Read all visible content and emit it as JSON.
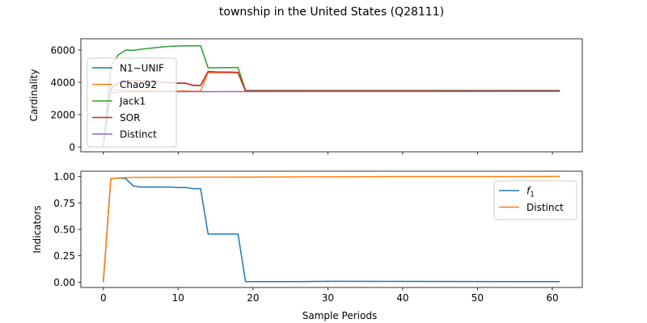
{
  "title": "township in the United States (Q28111)",
  "colors": {
    "blue": "#1f77b4",
    "orange": "#ff7f0e",
    "green": "#2ca02c",
    "red": "#d62728",
    "purple": "#9467bd"
  },
  "chart_data": [
    {
      "type": "line",
      "ylabel": "Cardinality",
      "xlabel": "",
      "xlim": [
        -3,
        64
      ],
      "ylim": [
        -300,
        6700
      ],
      "xticks": [
        0,
        10,
        20,
        30,
        40,
        50,
        60
      ],
      "xtick_labels": [
        "",
        "",
        "",
        "",
        "",
        "",
        ""
      ],
      "yticks": [
        0,
        2000,
        4000,
        6000
      ],
      "ytick_labels": [
        "0",
        "2000",
        "4000",
        "6000"
      ],
      "legend": {
        "placement": "upper-left"
      },
      "series": [
        {
          "name": "N1−UNIF",
          "color": "blue",
          "x": [
            0,
            1,
            2,
            3,
            4,
            5,
            6,
            7,
            8,
            9,
            10,
            11,
            12,
            13,
            14,
            15,
            16,
            17,
            18,
            19,
            61
          ],
          "y": [
            0,
            3600,
            3950,
            4050,
            4100,
            4100,
            4050,
            4050,
            4000,
            3980,
            3950,
            3950,
            3800,
            3800,
            4650,
            4620,
            4620,
            4620,
            4600,
            3450,
            3450
          ]
        },
        {
          "name": "Chao92",
          "color": "orange",
          "x": [
            0,
            1,
            2,
            3,
            4,
            5,
            6,
            7,
            8,
            9,
            10,
            11,
            12,
            13,
            14,
            15,
            16,
            17,
            18,
            19,
            61
          ],
          "y": [
            0,
            3550,
            3500,
            3500,
            3490,
            3490,
            3480,
            3480,
            3470,
            3470,
            3460,
            3460,
            3450,
            3450,
            4600,
            4600,
            4600,
            4600,
            4580,
            3450,
            3450
          ]
        },
        {
          "name": "Jack1",
          "color": "green",
          "x": [
            0,
            1,
            2,
            3,
            4,
            5,
            6,
            7,
            8,
            9,
            10,
            11,
            12,
            13,
            14,
            15,
            16,
            17,
            18,
            19,
            61
          ],
          "y": [
            0,
            5000,
            5700,
            6000,
            5980,
            6050,
            6100,
            6150,
            6200,
            6230,
            6250,
            6270,
            6260,
            6270,
            4900,
            4900,
            4910,
            4910,
            4920,
            3500,
            3500
          ]
        },
        {
          "name": "SOR",
          "color": "red",
          "x": [
            0,
            1,
            2,
            3,
            4,
            5,
            6,
            7,
            8,
            9,
            10,
            11,
            12,
            13,
            14,
            15,
            16,
            17,
            18,
            19,
            61
          ],
          "y": [
            0,
            3650,
            3950,
            4050,
            4100,
            4100,
            4050,
            4050,
            4000,
            3980,
            3950,
            3950,
            3820,
            3820,
            4680,
            4650,
            4640,
            4640,
            4620,
            3470,
            3470
          ]
        },
        {
          "name": "Distinct",
          "color": "purple",
          "x": [
            0,
            1,
            2,
            3,
            61
          ],
          "y": [
            0,
            3350,
            3400,
            3420,
            3440
          ]
        }
      ]
    },
    {
      "type": "line",
      "ylabel": "Indicators",
      "xlabel": "Sample Periods",
      "xlim": [
        -3,
        64
      ],
      "ylim": [
        -0.05,
        1.05
      ],
      "xticks": [
        0,
        10,
        20,
        30,
        40,
        50,
        60
      ],
      "xtick_labels": [
        "0",
        "10",
        "20",
        "30",
        "40",
        "50",
        "60"
      ],
      "yticks": [
        0.0,
        0.25,
        0.5,
        0.75,
        1.0
      ],
      "ytick_labels": [
        "0.00",
        "0.25",
        "0.50",
        "0.75",
        "1.00"
      ],
      "legend": {
        "placement": "upper-right"
      },
      "series": [
        {
          "name": "f1",
          "name_main": "f",
          "name_sub": "1",
          "color": "blue",
          "x": [
            0,
            1,
            2,
            3,
            4,
            5,
            6,
            7,
            8,
            9,
            10,
            11,
            12,
            13,
            14,
            15,
            16,
            17,
            18,
            19,
            25,
            30,
            61
          ],
          "y": [
            0,
            0.98,
            0.985,
            0.98,
            0.91,
            0.9,
            0.9,
            0.9,
            0.9,
            0.9,
            0.895,
            0.895,
            0.885,
            0.885,
            0.455,
            0.455,
            0.455,
            0.455,
            0.455,
            0.005,
            0.005,
            0.008,
            0.005
          ]
        },
        {
          "name": "Distinct",
          "color": "orange",
          "x": [
            0,
            1,
            2,
            3,
            4,
            10,
            20,
            30,
            40,
            61
          ],
          "y": [
            0,
            0.98,
            0.985,
            0.99,
            0.992,
            0.993,
            0.995,
            0.997,
            0.999,
            1.0
          ]
        }
      ]
    }
  ]
}
